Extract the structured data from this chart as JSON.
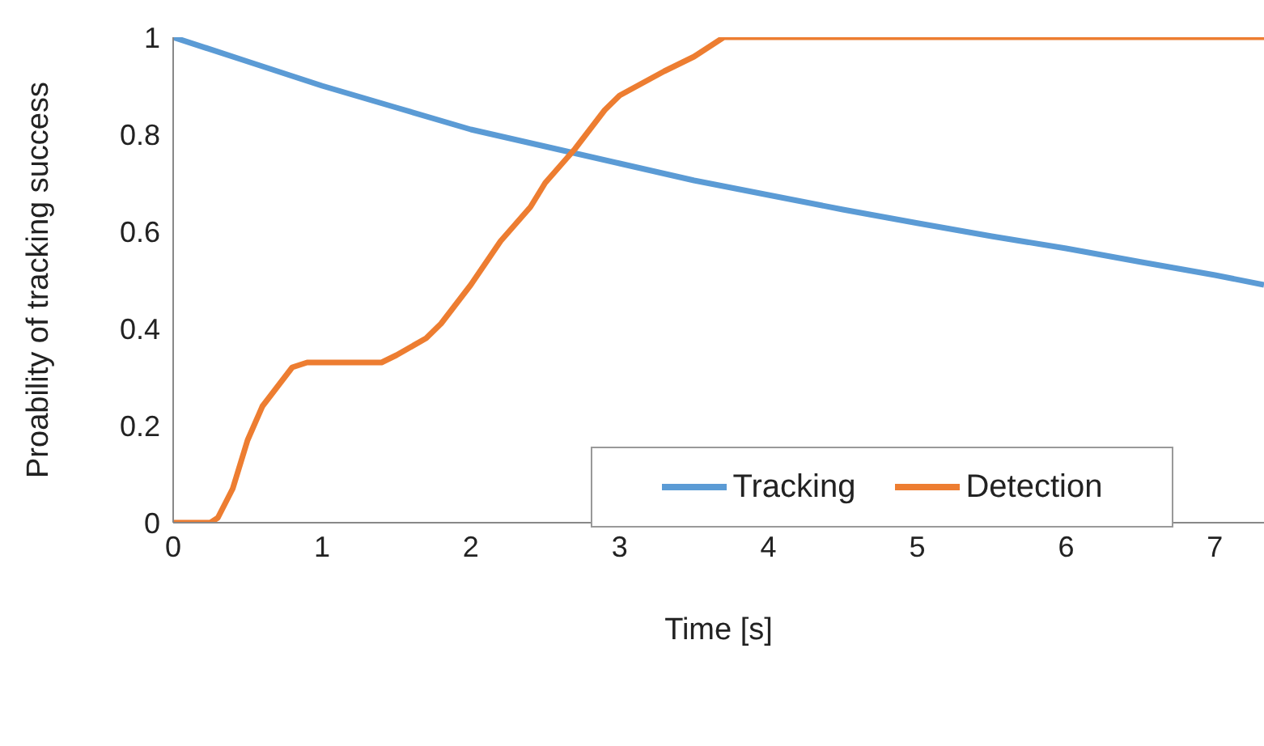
{
  "chart_data": {
    "type": "line",
    "xlabel": "Time [s]",
    "ylabel": "Proability of tracking success",
    "xlim": [
      0,
      7.33
    ],
    "xticks": [
      0,
      1,
      2,
      3,
      4,
      5,
      6,
      7
    ],
    "ylim": [
      0,
      1
    ],
    "yticks": [
      0,
      0.2,
      0.4,
      0.6,
      0.8,
      1
    ],
    "legend": "bottom right",
    "grid": false,
    "marker": "none",
    "line_style": "solid",
    "series": [
      {
        "name": "Tracking",
        "color": "#5b9bd5",
        "x": [
          0,
          0.5,
          1,
          1.5,
          2,
          2.5,
          3,
          3.5,
          4,
          4.5,
          5,
          5.5,
          6,
          6.5,
          7,
          7.33
        ],
        "values": [
          1,
          0.95,
          0.9,
          0.855,
          0.81,
          0.775,
          0.74,
          0.705,
          0.675,
          0.645,
          0.617,
          0.59,
          0.565,
          0.537,
          0.51,
          0.49
        ]
      },
      {
        "name": "Detection",
        "color": "#ed7d31",
        "x": [
          0,
          0.25,
          0.3,
          0.4,
          0.5,
          0.6,
          0.7,
          0.8,
          0.9,
          1.4,
          1.5,
          1.7,
          1.8,
          2,
          2.2,
          2.4,
          2.5,
          2.7,
          2.9,
          3,
          3.3,
          3.5,
          3.7,
          7.33
        ],
        "values": [
          0,
          0,
          0.01,
          0.07,
          0.17,
          0.24,
          0.28,
          0.32,
          0.33,
          0.33,
          0.345,
          0.38,
          0.41,
          0.49,
          0.58,
          0.65,
          0.7,
          0.77,
          0.85,
          0.88,
          0.93,
          0.96,
          1,
          1
        ]
      }
    ]
  }
}
